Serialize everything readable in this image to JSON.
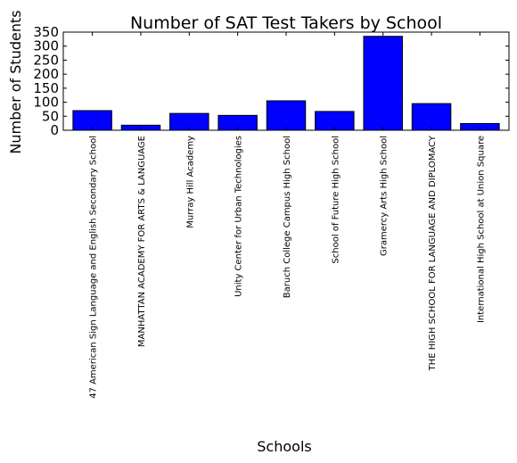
{
  "chart_data": {
    "type": "bar",
    "title": "Number of SAT Test Takers by School",
    "xlabel": "Schools",
    "ylabel": "Number of Students",
    "ylim": [
      0,
      350
    ],
    "yticks": [
      0,
      50,
      100,
      150,
      200,
      250,
      300,
      350
    ],
    "grid": false,
    "bar_color": "#0000ff",
    "categories": [
      "47  American Sign Language and English Secondary School",
      "MANHATTAN ACADEMY FOR ARTS & LANGUAGE",
      "Murray Hill Academy",
      "Unity Center for Urban Technologies",
      "Baruch College Campus High School",
      "School of  Future High School",
      "Gramercy Arts High School",
      "THE HIGH SCHOOL FOR LANGUAGE AND DIPLOMACY",
      "International High School at Union Square"
    ],
    "values": [
      70,
      18,
      60,
      53,
      105,
      67,
      335,
      95,
      24
    ]
  }
}
